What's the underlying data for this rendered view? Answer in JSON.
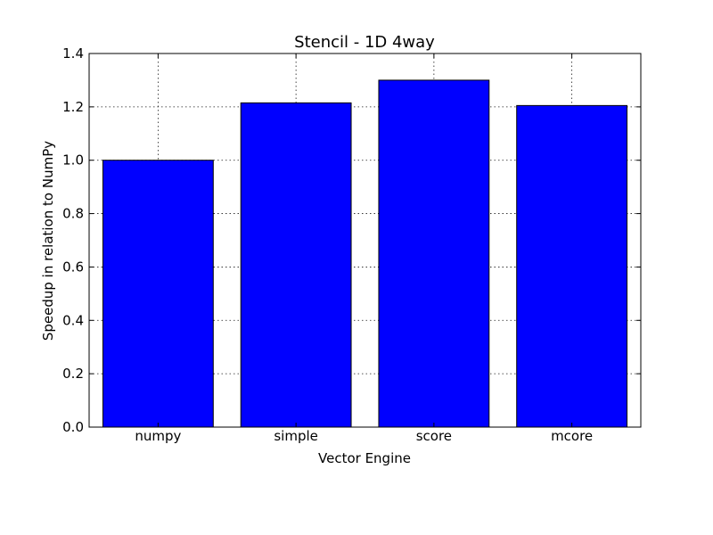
{
  "chart_data": {
    "type": "bar",
    "title": "Stencil - 1D 4way",
    "xlabel": "Vector Engine",
    "ylabel": "Speedup in relation to NumPy",
    "categories": [
      "numpy",
      "simple",
      "score",
      "mcore"
    ],
    "values": [
      1.0,
      1.215,
      1.3,
      1.205
    ],
    "ylim": [
      0.0,
      1.4
    ],
    "yticks": [
      "0.0",
      "0.2",
      "0.4",
      "0.6",
      "0.8",
      "1.0",
      "1.2",
      "1.4"
    ],
    "grid": true,
    "bar_color": "#0000ff"
  }
}
